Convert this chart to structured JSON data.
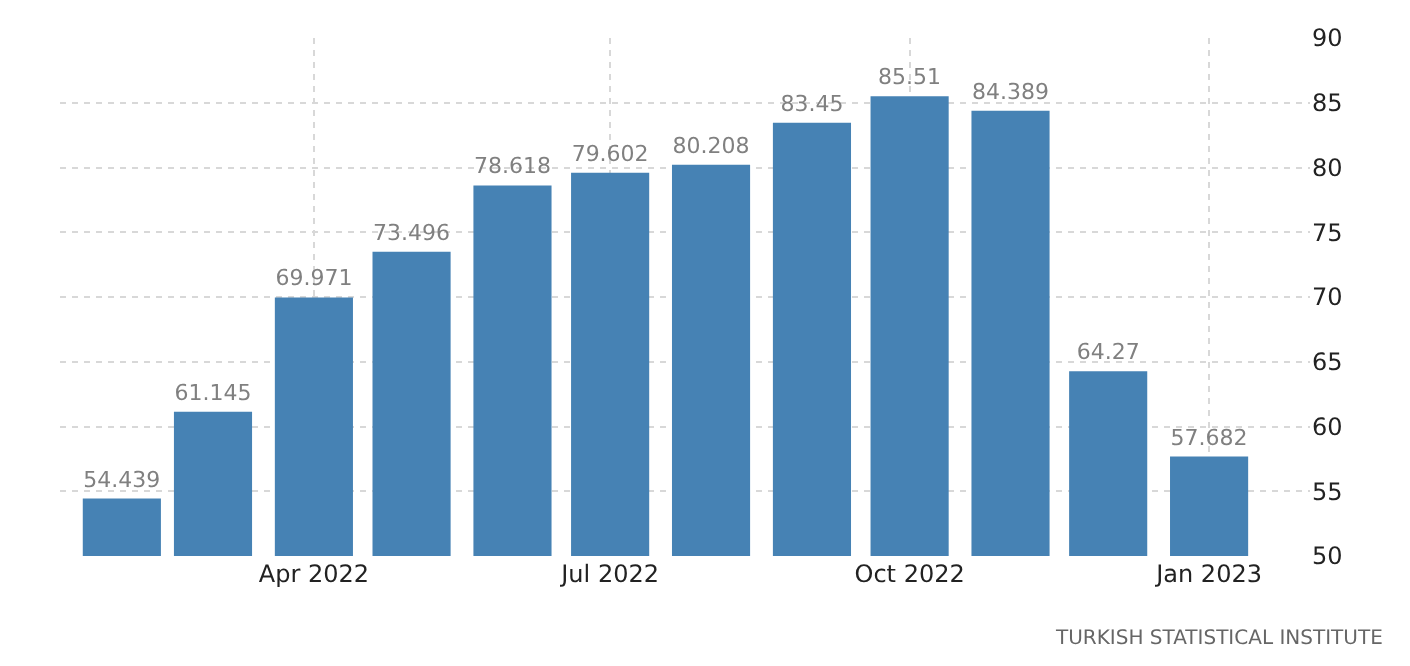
{
  "chart_data": {
    "type": "bar",
    "x": [
      "2022-02",
      "2022-03",
      "2022-04",
      "2022-05",
      "2022-06",
      "2022-07",
      "2022-08",
      "2022-09",
      "2022-10",
      "2022-11",
      "2022-12",
      "2023-01"
    ],
    "values": [
      54.439,
      61.145,
      69.971,
      73.496,
      78.618,
      79.602,
      80.208,
      83.45,
      85.51,
      84.389,
      64.27,
      57.682
    ],
    "color": "#4682b4",
    "data_labels": true,
    "xlim": [
      "2022-01-13",
      "2023-02-01"
    ],
    "xticks": [
      {
        "value": "2022-04",
        "label": "Apr 2022"
      },
      {
        "value": "2022-07",
        "label": "Jul 2022"
      },
      {
        "value": "2022-10",
        "label": "Oct 2022"
      },
      {
        "value": "2023-01",
        "label": "Jan 2023"
      }
    ],
    "ylim": [
      50,
      90
    ],
    "yticks": [
      50,
      55,
      60,
      65,
      70,
      75,
      80,
      85,
      90
    ],
    "grid": true,
    "annotations": [
      "TURKISH STATISTICAL INSTITUTE"
    ]
  }
}
